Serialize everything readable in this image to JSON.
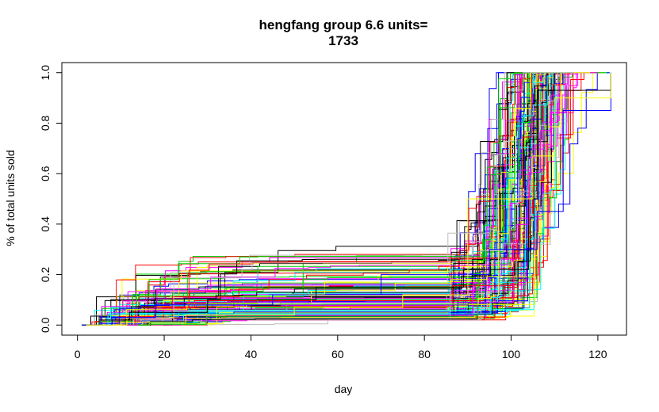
{
  "chart_data": {
    "type": "line",
    "title_line1": "hengfang group 6.6 units=",
    "title_line2": "1733",
    "xlabel": "day",
    "ylabel": "% of total units sold",
    "xlim": [
      -3.6,
      126.6
    ],
    "ylim": [
      -0.04,
      1.04
    ],
    "x_ticks": [
      0,
      20,
      40,
      60,
      80,
      100,
      120
    ],
    "x_tick_labels": [
      "0",
      "20",
      "40",
      "60",
      "80",
      "100",
      "120"
    ],
    "y_ticks": [
      0.0,
      0.2,
      0.4,
      0.6,
      0.8,
      1.0
    ],
    "y_tick_labels": [
      "0.0",
      "0.2",
      "0.4",
      "0.6",
      "0.8",
      "1.0"
    ],
    "grid": false,
    "legend": "none",
    "series_count": 160,
    "palette": [
      "#000000",
      "#FF0000",
      "#00CD00",
      "#0000FF",
      "#00FFFF",
      "#FF00FF",
      "#FFFF00",
      "#BEBEBE"
    ],
    "representative_series": [
      {
        "x": [
          1,
          5,
          12,
          30,
          55,
          89,
          104,
          106,
          123
        ],
        "y": [
          0.0,
          0.02,
          0.05,
          0.1,
          0.15,
          0.22,
          0.5,
          0.93,
          1.0
        ]
      },
      {
        "x": [
          1,
          8,
          18,
          45,
          70,
          95,
          106,
          112,
          123
        ],
        "y": [
          0.0,
          0.03,
          0.08,
          0.12,
          0.2,
          0.3,
          0.45,
          0.85,
          1.0
        ]
      },
      {
        "x": [
          2,
          10,
          25,
          50,
          75,
          90,
          105,
          110,
          123
        ],
        "y": [
          0.0,
          0.01,
          0.04,
          0.07,
          0.12,
          0.5,
          0.67,
          0.9,
          1.0
        ]
      }
    ]
  }
}
